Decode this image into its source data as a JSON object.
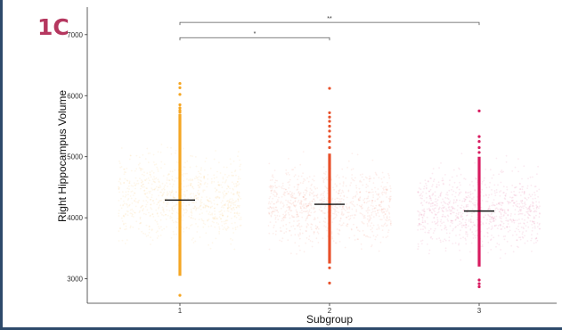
{
  "panel_label": "1C",
  "colors": {
    "frame": "#2e4a6b",
    "panel_label": "#b5375f",
    "series": [
      "#f5a623",
      "#e8502a",
      "#d81b60"
    ]
  },
  "chart_data": {
    "type": "scatter",
    "subtype": "jitter-strip with median markers",
    "title": "",
    "xlabel": "Subgroup",
    "ylabel": "Right Hippocampus Volume",
    "categories": [
      "1",
      "2",
      "3"
    ],
    "ylim": [
      2600,
      7450
    ],
    "yticks": [
      3000,
      4000,
      5000,
      6000,
      7000
    ],
    "grid": false,
    "legend": "none",
    "series": [
      {
        "category": "1",
        "median": 4290,
        "central_range": [
          3050,
          5700
        ],
        "outliers": [
          2730,
          5730,
          5760,
          5800,
          5850,
          6020,
          6130,
          6200
        ],
        "cloud_range": [
          3450,
          5200
        ]
      },
      {
        "category": "2",
        "median": 4220,
        "central_range": [
          3250,
          5050
        ],
        "outliers": [
          2930,
          3180,
          5150,
          5250,
          5330,
          5420,
          5500,
          5580,
          5650,
          5720,
          6120
        ],
        "cloud_range": [
          3400,
          5000
        ]
      },
      {
        "category": "3",
        "median": 4110,
        "central_range": [
          3200,
          5000
        ],
        "outliers": [
          2870,
          2920,
          2980,
          5070,
          5150,
          5250,
          5330,
          5750
        ],
        "cloud_range": [
          3300,
          4950
        ]
      }
    ],
    "significance": [
      {
        "from": "1",
        "to": "2",
        "label": "*",
        "y": 6950
      },
      {
        "from": "1",
        "to": "3",
        "label": "**",
        "y": 7200
      }
    ]
  }
}
